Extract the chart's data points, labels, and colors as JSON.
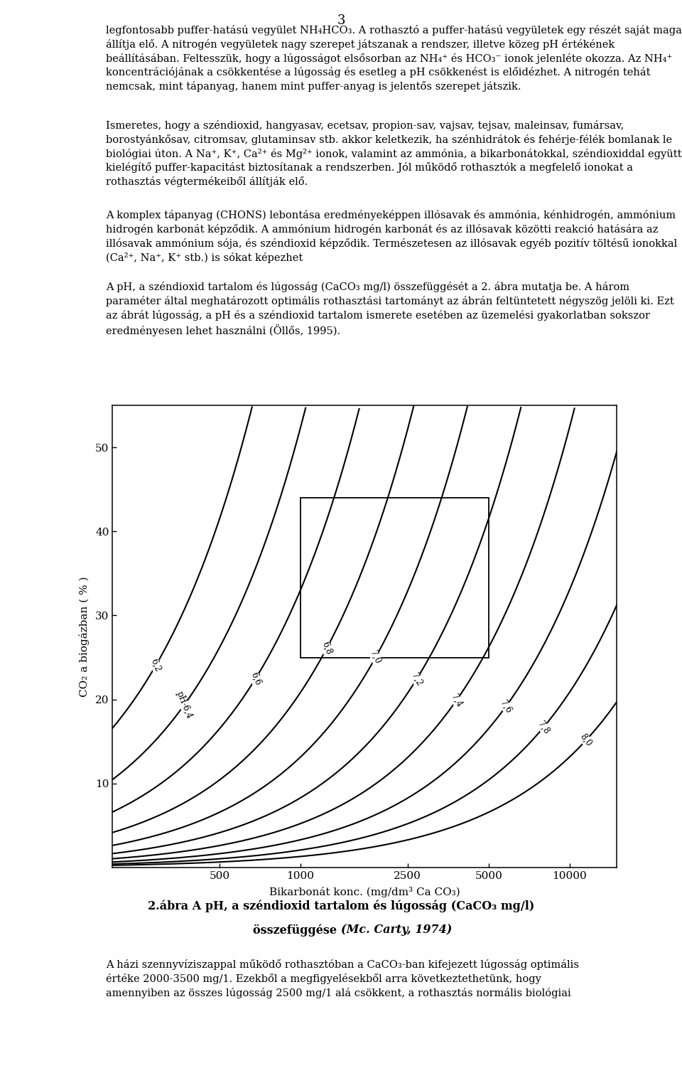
{
  "title_line1": "2.ábra A pH, a széndioxid tartalom és lúgoSSág (CaCO₃ mg/l)",
  "title_line2": "összefüggése (Mc. Carty, 1974)",
  "xlabel": "Bikarbonát konc. (mg/dm³ Ca CO₃)",
  "ylabel": "CO₂ a biogázban ( % )",
  "ph_values": [
    6.2,
    6.4,
    6.6,
    6.8,
    7.0,
    7.2,
    7.4,
    7.6,
    7.8,
    8.0
  ],
  "yticks": [
    10,
    20,
    30,
    40,
    50
  ],
  "xtick_positions": [
    500,
    1000,
    2500,
    5000,
    10000
  ],
  "xtick_labels": [
    "500",
    "1000",
    "2500",
    "5000",
    "10000"
  ],
  "rect_x1": 1000,
  "rect_x2": 5000,
  "rect_y1": 25,
  "rect_y2": 44,
  "background_color": "#ffffff",
  "page_number": "3",
  "label_x_positions": [
    290,
    370,
    680,
    1250,
    1900,
    2700,
    3800,
    5800,
    8000,
    11500
  ],
  "label_strings": [
    "6,2",
    "pH-6,4",
    "6,6",
    "6,8",
    "7,0",
    "7,2",
    "7,4",
    "7,6",
    "7,8",
    "8,0"
  ],
  "label_rotations": [
    -68,
    -68,
    -68,
    -68,
    -65,
    -62,
    -60,
    -58,
    -55,
    -52
  ],
  "pK1": 6.35,
  "KH": 34.0,
  "hco3_eq_weight": 50.045,
  "para1_lines": [
    "legfontosabb puffer-hatású vegyület NH₄HCO₃. A rothasztó a puffer-hatású vegyületek egy részét saját maga állítja elő. A nitrogén vegyületek nagy szerepet játszanak a rendszer, illetve",
    "közeg pH értékének beállításában. Feltesszük, hogy a lúgosságot elsősorban az NH₄⁺ és HCO₃⁻ ionok jelenléte okozza. Az NH₄⁺ koncentrációjának a csökkentése a lúgosság és esetleg",
    "a pH csökkenést is előidézhet. A nitrogén tehát nemcsak, mint tápanyag, hanem mint puffer-anyag is jelentős szerepet játszik."
  ],
  "para2": "Ismeretes, hogy a széndioxid, hangyasav, ecetsav, propion-sav, vajsav, tejsav, maleinsav, fumársav, borostyánkősav, citromsav, glutaminsav stb. akkor keletkezik, ha szénhidrátok és fehérje-félék bomlanak le biológiai úton. A Na⁺, K⁺, Ca²⁺ és Mg²⁺ ionok, valamint az ammónia, a bikarbonátokkal, széndioxiddal együtt kielégítő puffer-kapacitást biztosítanak a rendszerben. Jól működő rothasztók a megfelelő ionokat a rothasztas végtermékeiből állítják elő.",
  "para3": "A komplex tápanyag (CHONS) lebontása eredményeképpen illósavak és ammónia, kénhidrogén, ammónium hidrogén karbonát képződik. A ammónium hidrogén karbonát és az illósavak közötti reakció hatására az illósavak ammónium sója, és széndioxid képződik. Természetesen az illósavak egyéb pozitív töltésű ionokkal (Ca²⁺, Na⁺, K⁺ stb.) is sókat képezhet",
  "para4": "A pH, a széndioxid tartalom és lúgosság (CaCO₃ mg/l) összefüggését a 2. ábra mutatja be. A három paraméter által meghatározott optimális rothasztási tartományt az ábrán feltüntetett négyszög jelöli ki. Ezt az ábrát lúgosság, a pH és a széndioxid tartalom ismerete esetében az üzemelési gyakorlatban sokszor eredményesen lehet használni (Öllős, 1995).",
  "caption_bold": "2.ábra A pH, a széndioxid tartalom és lúgosság (CaCO₃ mg/l)",
  "caption_bold2": "összefüggése",
  "caption_italic": "(Mc. Carty, 1974)",
  "bottom_para": "A házi szennvíiziszappal működő rothasztóban a CaCO₃-ban kifejezett lúgosság optimális értéke 2000-3500 mg/1. Ezekből a megfigyelésekből arra következtethetünk, hogy amennyiben az összes lúgosság 2500 mg/1 alá csökkent, a rothasztas normális biológiai"
}
